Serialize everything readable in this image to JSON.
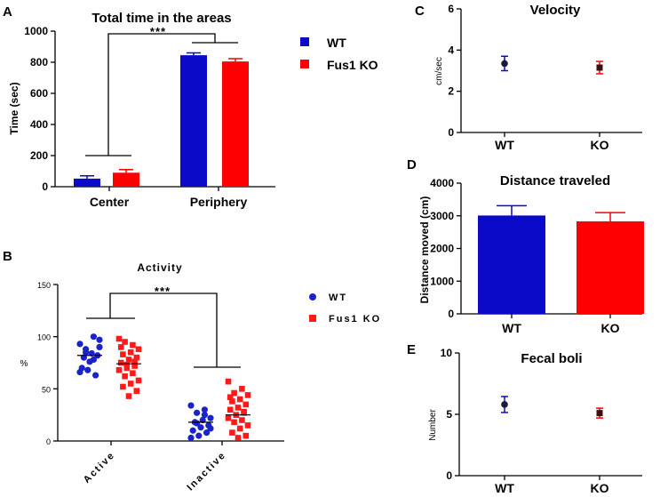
{
  "colors": {
    "wt": "#0a0ac8",
    "ko": "#ff0000",
    "dot_wt": "#1a22cc",
    "dot_ko": "#ff1a1a",
    "dark": "#1a1a40",
    "dark_ko": "#3a1010"
  },
  "chart_data": [
    {
      "id": "A",
      "type": "bar",
      "label": "A",
      "title": "Total time in the areas",
      "ylabel": "Time (sec)",
      "ylim": [
        0,
        1000
      ],
      "yticks": [
        "0",
        "200",
        "400",
        "600",
        "800",
        "1000"
      ],
      "categories": [
        "Center",
        "Periphery"
      ],
      "series": [
        {
          "name": "WT",
          "values": [
            52,
            845
          ],
          "errors": [
            18,
            15
          ]
        },
        {
          "name": "Fus1 KO",
          "values": [
            90,
            805
          ],
          "errors": [
            20,
            18
          ]
        }
      ],
      "significance": "***",
      "legend": [
        "WT",
        "Fus1 KO"
      ]
    },
    {
      "id": "B",
      "type": "scatter",
      "label": "B",
      "title": "Activity",
      "ylabel": "%",
      "ylim": [
        0,
        150
      ],
      "yticks": [
        "0",
        "50",
        "100",
        "150"
      ],
      "categories": [
        "Active",
        "Inactive"
      ],
      "series": [
        {
          "name": "WT",
          "points": [
            [
              93,
              100,
              88,
              97,
              84,
              80,
              82,
              76,
              70,
              63,
              68,
              66,
              78,
              85,
              90
            ],
            [
              34,
              30,
              27,
              22,
              20,
              18,
              15,
              13,
              10,
              8,
              5,
              3,
              25,
              17,
              12
            ]
          ],
          "means": [
            82,
            18
          ]
        },
        {
          "name": "Fus1 KO",
          "points": [
            [
              98,
              92,
              95,
              88,
              85,
              83,
              80,
              78,
              75,
              72,
              70,
              68,
              65,
              62,
              58,
              55,
              52,
              48,
              43,
              90,
              76,
              73
            ],
            [
              57,
              50,
              46,
              44,
              40,
              38,
              35,
              32,
              30,
              28,
              25,
              22,
              20,
              18,
              15,
              12,
              8,
              5,
              3,
              42,
              27
            ]
          ],
          "means": [
            74,
            25
          ]
        }
      ],
      "significance": "***",
      "legend": [
        "WT",
        "Fus1 KO"
      ]
    },
    {
      "id": "C",
      "type": "scatter",
      "label": "C",
      "title": "Velocity",
      "ylabel": "cm/sec",
      "ylim": [
        0,
        6
      ],
      "yticks": [
        "0",
        "2",
        "4",
        "6"
      ],
      "categories": [
        "WT",
        "KO"
      ],
      "means": [
        3.35,
        3.15
      ],
      "errors": [
        0.35,
        0.3
      ]
    },
    {
      "id": "D",
      "type": "bar",
      "label": "D",
      "title": "Distance traveled",
      "ylabel": "Distance moved (cm)",
      "ylim": [
        0,
        4000
      ],
      "yticks": [
        "0",
        "1000",
        "2000",
        "3000",
        "4000"
      ],
      "categories": [
        "WT",
        "KO"
      ],
      "values": [
        3010,
        2830
      ],
      "errors": [
        300,
        270
      ]
    },
    {
      "id": "E",
      "type": "scatter",
      "label": "E",
      "title": "Fecal boli",
      "ylabel": "Number",
      "ylim": [
        0,
        10
      ],
      "yticks": [
        "0",
        "5",
        "10"
      ],
      "categories": [
        "WT",
        "KO"
      ],
      "means": [
        5.8,
        5.1
      ],
      "errors": [
        0.65,
        0.4
      ]
    }
  ]
}
